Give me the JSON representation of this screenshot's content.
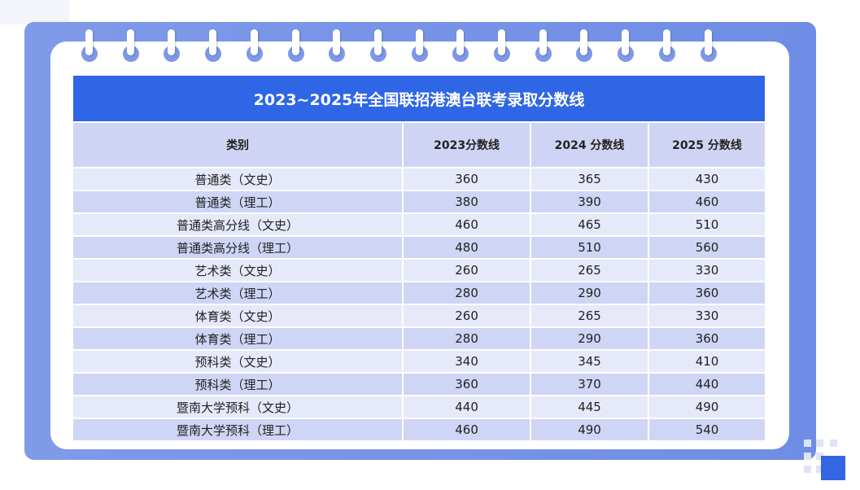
{
  "title": "2023~2025年全国联招港澳台联考录取分数线",
  "headers": [
    "类别",
    "2023分数线",
    "2024 分数线",
    "2025 分数线"
  ],
  "rows": [
    [
      "普通类（文史）",
      "360",
      "365",
      "430"
    ],
    [
      "普通类（理工）",
      "380",
      "390",
      "460"
    ],
    [
      "普通类高分线（文史）",
      "460",
      "465",
      "510"
    ],
    [
      "普通类高分线（理工）",
      "480",
      "510",
      "560"
    ],
    [
      "艺术类（文史）",
      "260",
      "265",
      "330"
    ],
    [
      "艺术类（理工）",
      "280",
      "290",
      "360"
    ],
    [
      "体育类（文史）",
      "260",
      "265",
      "330"
    ],
    [
      "体育类（理工）",
      "280",
      "290",
      "360"
    ],
    [
      "预科类（文史）",
      "340",
      "345",
      "410"
    ],
    [
      "预科类（理工）",
      "360",
      "370",
      "440"
    ],
    [
      "暨南大学预科（文史）",
      "440",
      "445",
      "490"
    ],
    [
      "暨南大学预科（理工）",
      "460",
      "490",
      "540"
    ]
  ],
  "colors": {
    "title_bg": "#2f66e6",
    "header_bg": "#d0d4f4",
    "row_light": "#e6e9f9",
    "row_dark": "#cfd5f5",
    "panel": "#7b97e7"
  }
}
